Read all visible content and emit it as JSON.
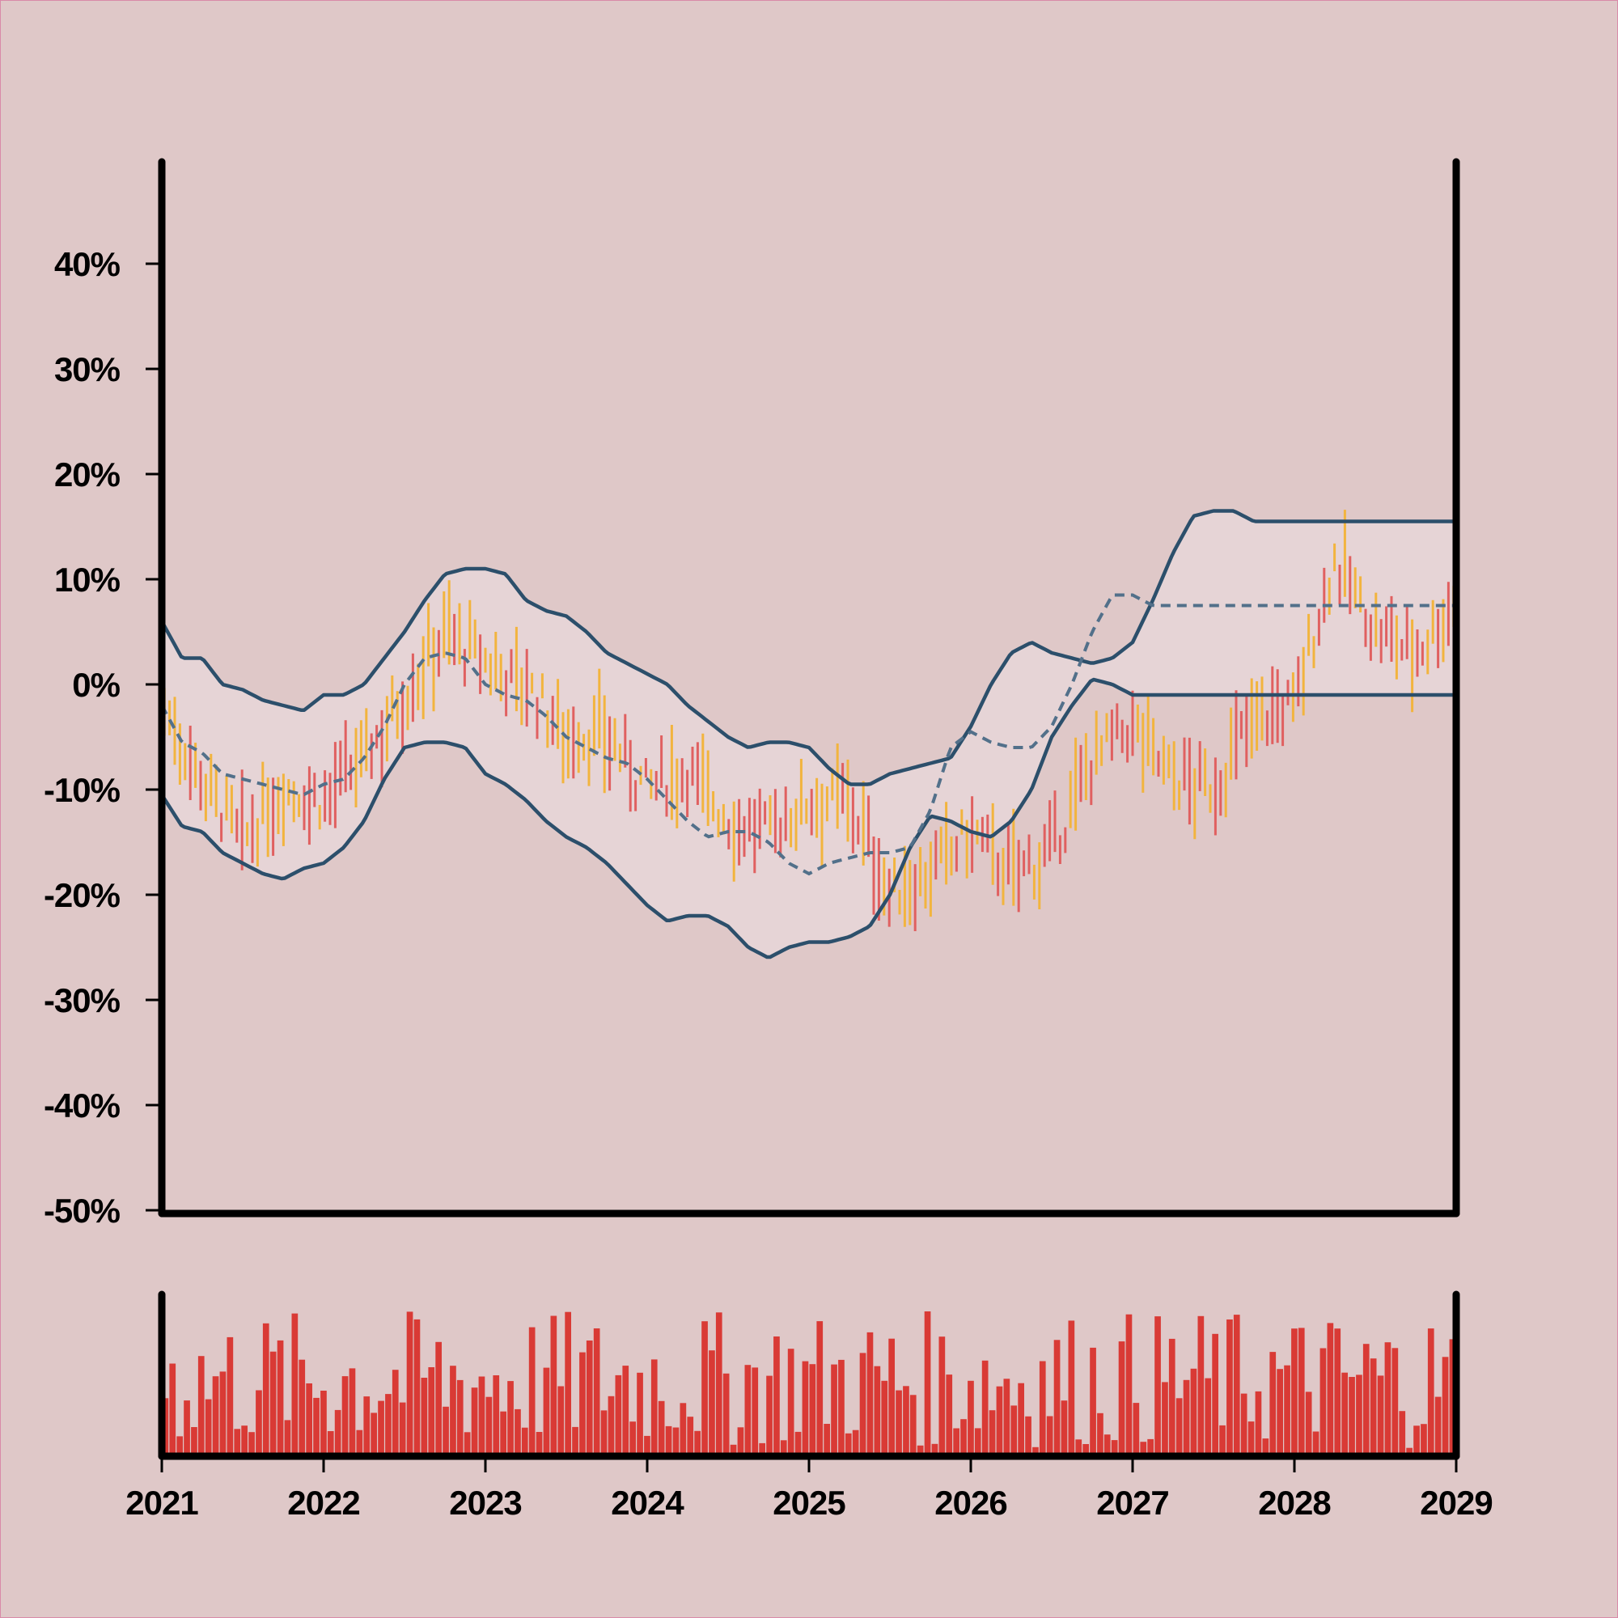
{
  "chart_data": {
    "type": "ohlc",
    "title": "",
    "xlabel": "",
    "ylabel": "",
    "x_axis": {
      "range": [
        2021,
        2029
      ],
      "ticks": [
        2021,
        2022,
        2023,
        2024,
        2025,
        2026,
        2027,
        2028,
        2029
      ],
      "tick_labels": [
        "2021",
        "2022",
        "2023",
        "2024",
        "2025",
        "2026",
        "2027",
        "2028",
        "2029"
      ]
    },
    "y_axis": {
      "unit": "%",
      "range": [
        -50,
        50
      ],
      "ticks": [
        40,
        30,
        20,
        10,
        0,
        -10,
        -20,
        -30,
        -40,
        -50
      ],
      "tick_labels": [
        "40%",
        "30%",
        "20%",
        "10%",
        "0%",
        "-10%",
        "-20%",
        "-30%",
        "-40%",
        "-50%"
      ]
    },
    "grid": false,
    "legend": "none",
    "colors": {
      "background": "#dfc8c8",
      "band_fill": "#e6d4d6",
      "band_line": "#2c4f6b",
      "mid_line": "#52708a",
      "up_bar": "#e06060",
      "down_bar": "#f2b43e",
      "volume": "#d93a35",
      "axis": "#000000"
    },
    "price_series": {
      "x": [
        2021.0,
        2021.25,
        2021.5,
        2021.75,
        2022.0,
        2022.25,
        2022.5,
        2022.75,
        2023.0,
        2023.25,
        2023.5,
        2023.75,
        2024.0,
        2024.25,
        2024.5,
        2024.75,
        2025.0,
        2025.25,
        2025.5,
        2025.75,
        2026.0,
        2026.25,
        2026.5,
        2026.75,
        2027.0,
        2027.25,
        2027.5,
        2027.75,
        2028.0,
        2028.25,
        2028.5,
        2028.75,
        2029.0
      ],
      "y": [
        -2,
        -9,
        -15,
        -10,
        -11,
        -7,
        -1,
        5,
        2,
        0,
        -5,
        -5,
        -10,
        -8,
        -13,
        -14,
        -11,
        -11,
        -20,
        -18,
        -14,
        -18,
        -16,
        -7,
        -4,
        -9,
        -10,
        -3,
        -2,
        12,
        5,
        3,
        8
      ]
    },
    "bands": {
      "x": [
        2021.0,
        2021.125,
        2021.25,
        2021.375,
        2021.5,
        2021.625,
        2021.75,
        2021.875,
        2022.0,
        2022.125,
        2022.25,
        2022.375,
        2022.5,
        2022.625,
        2022.75,
        2022.875,
        2023.0,
        2023.125,
        2023.25,
        2023.375,
        2023.5,
        2023.625,
        2023.75,
        2023.875,
        2024.0,
        2024.125,
        2024.25,
        2024.375,
        2024.5,
        2024.625,
        2024.75,
        2024.875,
        2025.0,
        2025.125,
        2025.25,
        2025.375,
        2025.5,
        2025.625,
        2025.75,
        2025.875,
        2026.0,
        2026.125,
        2026.25,
        2026.375,
        2026.5,
        2026.625,
        2026.75,
        2026.875,
        2027.0,
        2027.125,
        2027.25,
        2027.375,
        2027.5,
        2027.625,
        2027.75,
        2027.875,
        2028.0,
        2028.125,
        2028.25,
        2028.375,
        2028.5,
        2028.625,
        2028.75,
        2028.875,
        2029.0
      ],
      "upper": [
        6,
        2.5,
        2.5,
        0,
        -0.5,
        -1.5,
        -2,
        -2.5,
        -1,
        -1,
        0,
        2.5,
        5,
        8,
        10.5,
        11,
        11,
        10.5,
        8,
        7,
        6.5,
        5,
        3,
        2,
        1,
        0,
        -2,
        -3.5,
        -5,
        -6,
        -5.5,
        -5.5,
        -6,
        -8,
        -9.5,
        -9.5,
        -8.5,
        -8,
        -7.5,
        -7,
        -4,
        0,
        3,
        4,
        3,
        2.5,
        2,
        2.5,
        4,
        8,
        12.5,
        16,
        16.5,
        16.5,
        15.5,
        15.5,
        15.5,
        15.5,
        15.5,
        15.5,
        15.5,
        15.5,
        15.5,
        15.5,
        15.5
      ],
      "middle": [
        -2,
        -5.5,
        -6.5,
        -8.5,
        -9,
        -9.5,
        -10,
        -10.5,
        -9.5,
        -9,
        -7,
        -4,
        0,
        2.5,
        3,
        2.5,
        0,
        -1,
        -1.5,
        -3,
        -5,
        -6,
        -7,
        -7.5,
        -9,
        -11,
        -13,
        -14.5,
        -14,
        -14,
        -15,
        -17,
        -18,
        -17,
        -16.5,
        -16,
        -16,
        -15.5,
        -12,
        -6,
        -4.5,
        -5.5,
        -6,
        -6,
        -4,
        0,
        5,
        8.5,
        8.5,
        7.5,
        7.5,
        7.5,
        7.5,
        7.5,
        7.5,
        7.5,
        7.5,
        7.5,
        7.5,
        7.5,
        7.5,
        7.5,
        7.5,
        7.5,
        7.5
      ],
      "lower": [
        -10.5,
        -13.5,
        -14,
        -16,
        -17,
        -18,
        -18.5,
        -17.5,
        -17,
        -15.5,
        -13,
        -9,
        -6,
        -5.5,
        -5.5,
        -6,
        -8.5,
        -9.5,
        -11,
        -13,
        -14.5,
        -15.5,
        -17,
        -19,
        -21,
        -22.5,
        -22,
        -22,
        -23,
        -25,
        -26,
        -25,
        -24.5,
        -24.5,
        -24,
        -23,
        -20,
        -15.5,
        -12.5,
        -13,
        -14,
        -14.5,
        -13,
        -10,
        -5,
        -2,
        0.5,
        0,
        -1,
        -1,
        -1,
        -1,
        -1,
        -1,
        -1,
        -1,
        -1,
        -1,
        -1,
        -1,
        -1,
        -1,
        -1,
        -1,
        -1
      ]
    },
    "volume_series": {
      "note_units": "relative",
      "count": 180
    }
  }
}
